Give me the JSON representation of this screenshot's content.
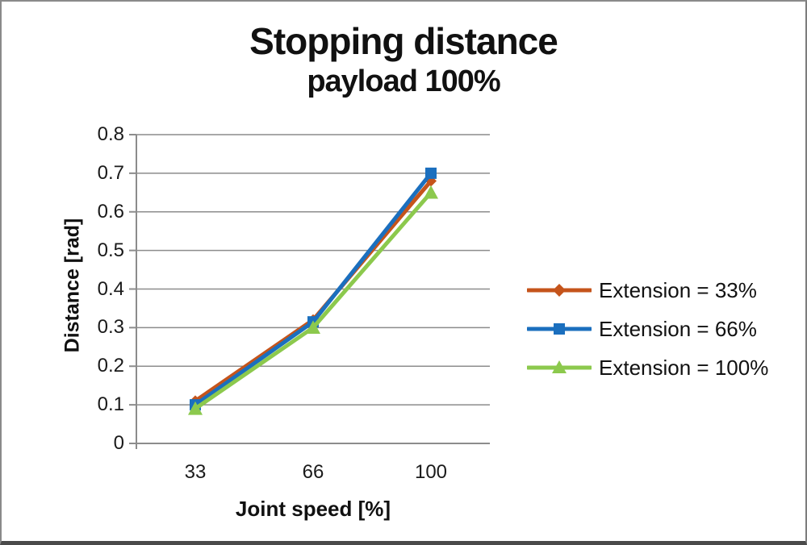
{
  "chart_data": {
    "type": "line",
    "title": "Stopping distance",
    "subtitle": "payload 100%",
    "xlabel": "Joint speed [%]",
    "ylabel": "Distance [rad]",
    "categories": [
      "33",
      "66",
      "100"
    ],
    "ylim": [
      0,
      0.8
    ],
    "ytick_step": 0.1,
    "ytick_labels": [
      "0",
      "0.1",
      "0.2",
      "0.3",
      "0.4",
      "0.5",
      "0.6",
      "0.7",
      "0.8"
    ],
    "grid": true,
    "legend_position": "right",
    "series": [
      {
        "name": "Extension = 33%",
        "marker": "diamond",
        "color": "#C5541B",
        "values": [
          0.11,
          0.32,
          0.68
        ]
      },
      {
        "name": "Extension = 66%",
        "marker": "square",
        "color": "#1B6FBE",
        "values": [
          0.1,
          0.315,
          0.7
        ]
      },
      {
        "name": "Extension = 100%",
        "marker": "triangle",
        "color": "#8CC94D",
        "values": [
          0.09,
          0.3,
          0.65
        ]
      }
    ],
    "colors": {
      "gridline": "#8C8C8C",
      "axis": "#8C8C8C",
      "text": "#111111"
    }
  }
}
